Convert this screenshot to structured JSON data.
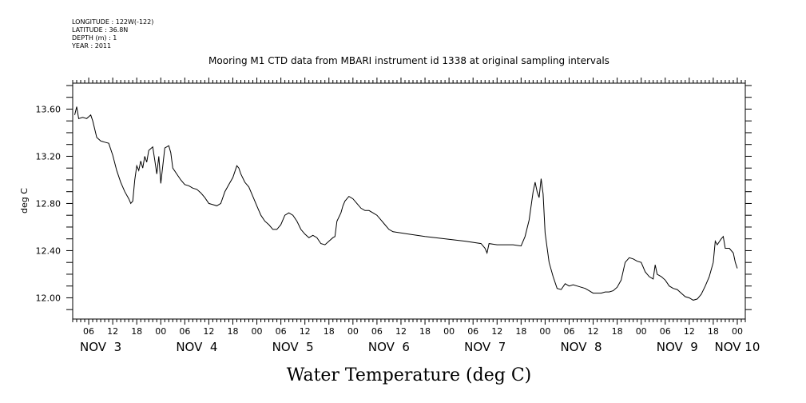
{
  "header": {
    "longitude": "LONGITUDE : 122W(-122)",
    "latitude": "LATITUDE : 36.8N",
    "depth": "DEPTH (m) : 1",
    "year": "YEAR : 2011"
  },
  "chart_data": {
    "type": "line",
    "title": "Mooring M1 CTD data from MBARI instrument id 1338 at original sampling intervals",
    "xlabel": "Water Temperature (deg C)",
    "ylabel": "deg C",
    "x_unit": "hours since NOV 3 00:00",
    "xlim": [
      2,
      170
    ],
    "ylim": [
      11.82,
      13.82
    ],
    "y_ticks": [
      12.0,
      12.4,
      12.8,
      13.2,
      13.6
    ],
    "y_tick_labels": [
      "12.00",
      "12.40",
      "12.80",
      "13.20",
      "13.60"
    ],
    "hour_labels": [
      {
        "x": 6,
        "label": "06"
      },
      {
        "x": 12,
        "label": "12"
      },
      {
        "x": 18,
        "label": "18"
      },
      {
        "x": 24,
        "label": "00"
      },
      {
        "x": 30,
        "label": "06"
      },
      {
        "x": 36,
        "label": "12"
      },
      {
        "x": 42,
        "label": "18"
      },
      {
        "x": 48,
        "label": "00"
      },
      {
        "x": 54,
        "label": "06"
      },
      {
        "x": 60,
        "label": "12"
      },
      {
        "x": 66,
        "label": "18"
      },
      {
        "x": 72,
        "label": "00"
      },
      {
        "x": 78,
        "label": "06"
      },
      {
        "x": 84,
        "label": "12"
      },
      {
        "x": 90,
        "label": "18"
      },
      {
        "x": 96,
        "label": "00"
      },
      {
        "x": 102,
        "label": "06"
      },
      {
        "x": 108,
        "label": "12"
      },
      {
        "x": 114,
        "label": "18"
      },
      {
        "x": 120,
        "label": "00"
      },
      {
        "x": 126,
        "label": "06"
      },
      {
        "x": 132,
        "label": "12"
      },
      {
        "x": 138,
        "label": "18"
      },
      {
        "x": 144,
        "label": "00"
      },
      {
        "x": 150,
        "label": "06"
      },
      {
        "x": 156,
        "label": "12"
      },
      {
        "x": 162,
        "label": "18"
      },
      {
        "x": 168,
        "label": "00"
      }
    ],
    "day_labels": [
      {
        "x": 9,
        "label": "NOV  3"
      },
      {
        "x": 33,
        "label": "NOV  4"
      },
      {
        "x": 57,
        "label": "NOV  5"
      },
      {
        "x": 81,
        "label": "NOV  6"
      },
      {
        "x": 105,
        "label": "NOV  7"
      },
      {
        "x": 129,
        "label": "NOV  8"
      },
      {
        "x": 153,
        "label": "NOV  9"
      },
      {
        "x": 168,
        "label": "NOV 10"
      }
    ],
    "series": [
      {
        "points": [
          [
            2.5,
            13.55
          ],
          [
            3.0,
            13.62
          ],
          [
            3.5,
            13.52
          ],
          [
            4.5,
            13.53
          ],
          [
            5.5,
            13.52
          ],
          [
            6.5,
            13.55
          ],
          [
            7.0,
            13.5
          ],
          [
            8.0,
            13.36
          ],
          [
            9.0,
            13.33
          ],
          [
            10.0,
            13.32
          ],
          [
            11.0,
            13.31
          ],
          [
            12.0,
            13.21
          ],
          [
            13.0,
            13.08
          ],
          [
            14.0,
            12.98
          ],
          [
            15.0,
            12.9
          ],
          [
            16.0,
            12.84
          ],
          [
            16.5,
            12.8
          ],
          [
            17.0,
            12.82
          ],
          [
            17.5,
            13.0
          ],
          [
            18.0,
            13.12
          ],
          [
            18.5,
            13.08
          ],
          [
            19.0,
            13.16
          ],
          [
            19.5,
            13.1
          ],
          [
            20.0,
            13.2
          ],
          [
            20.5,
            13.15
          ],
          [
            21.0,
            13.25
          ],
          [
            22.0,
            13.28
          ],
          [
            22.5,
            13.17
          ],
          [
            23.0,
            13.05
          ],
          [
            23.5,
            13.2
          ],
          [
            24.0,
            12.97
          ],
          [
            24.5,
            13.12
          ],
          [
            25.0,
            13.27
          ],
          [
            26.0,
            13.29
          ],
          [
            26.5,
            13.23
          ],
          [
            27.0,
            13.1
          ],
          [
            28.0,
            13.05
          ],
          [
            29.0,
            13.0
          ],
          [
            30.0,
            12.96
          ],
          [
            31.0,
            12.95
          ],
          [
            32.0,
            12.93
          ],
          [
            33.0,
            12.92
          ],
          [
            34.0,
            12.89
          ],
          [
            35.0,
            12.85
          ],
          [
            36.0,
            12.8
          ],
          [
            37.0,
            12.79
          ],
          [
            38.0,
            12.78
          ],
          [
            39.0,
            12.8
          ],
          [
            40.0,
            12.9
          ],
          [
            41.0,
            12.96
          ],
          [
            42.0,
            13.02
          ],
          [
            43.0,
            13.12
          ],
          [
            43.5,
            13.1
          ],
          [
            44.0,
            13.05
          ],
          [
            45.0,
            12.98
          ],
          [
            46.0,
            12.94
          ],
          [
            47.0,
            12.86
          ],
          [
            48.0,
            12.78
          ],
          [
            49.0,
            12.7
          ],
          [
            50.0,
            12.65
          ],
          [
            51.0,
            12.62
          ],
          [
            52.0,
            12.58
          ],
          [
            53.0,
            12.58
          ],
          [
            54.0,
            12.62
          ],
          [
            55.0,
            12.7
          ],
          [
            56.0,
            12.72
          ],
          [
            57.0,
            12.7
          ],
          [
            58.0,
            12.65
          ],
          [
            59.0,
            12.58
          ],
          [
            60.0,
            12.54
          ],
          [
            61.0,
            12.51
          ],
          [
            62.0,
            12.53
          ],
          [
            63.0,
            12.51
          ],
          [
            64.0,
            12.46
          ],
          [
            65.0,
            12.45
          ],
          [
            66.0,
            12.48
          ],
          [
            67.0,
            12.51
          ],
          [
            67.5,
            12.52
          ],
          [
            68.0,
            12.65
          ],
          [
            69.0,
            12.72
          ],
          [
            69.5,
            12.78
          ],
          [
            70.0,
            12.82
          ],
          [
            71.0,
            12.86
          ],
          [
            72.0,
            12.84
          ],
          [
            73.0,
            12.8
          ],
          [
            74.0,
            12.76
          ],
          [
            75.0,
            12.74
          ],
          [
            76.0,
            12.74
          ],
          [
            77.0,
            12.72
          ],
          [
            78.0,
            12.7
          ],
          [
            79.0,
            12.66
          ],
          [
            80.0,
            12.62
          ],
          [
            81.0,
            12.58
          ],
          [
            82.0,
            12.56
          ],
          [
            90.0,
            12.52
          ],
          [
            100.0,
            12.48
          ],
          [
            104.0,
            12.46
          ],
          [
            105.0,
            12.42
          ],
          [
            105.5,
            12.38
          ],
          [
            106.0,
            12.46
          ],
          [
            108.0,
            12.45
          ],
          [
            112.0,
            12.45
          ],
          [
            114.0,
            12.44
          ],
          [
            115.0,
            12.52
          ],
          [
            116.0,
            12.66
          ],
          [
            117.0,
            12.9
          ],
          [
            117.5,
            12.98
          ],
          [
            118.0,
            12.9
          ],
          [
            118.5,
            12.85
          ],
          [
            119.0,
            13.01
          ],
          [
            119.5,
            12.88
          ],
          [
            120.0,
            12.55
          ],
          [
            121.0,
            12.3
          ],
          [
            122.0,
            12.18
          ],
          [
            123.0,
            12.08
          ],
          [
            124.0,
            12.07
          ],
          [
            125.0,
            12.12
          ],
          [
            126.0,
            12.1
          ],
          [
            127.0,
            12.11
          ],
          [
            128.0,
            12.1
          ],
          [
            129.0,
            12.09
          ],
          [
            130.0,
            12.08
          ],
          [
            131.0,
            12.06
          ],
          [
            132.0,
            12.04
          ],
          [
            133.0,
            12.04
          ],
          [
            134.0,
            12.04
          ],
          [
            135.0,
            12.05
          ],
          [
            136.0,
            12.05
          ],
          [
            137.0,
            12.06
          ],
          [
            138.0,
            12.09
          ],
          [
            139.0,
            12.15
          ],
          [
            140.0,
            12.3
          ],
          [
            141.0,
            12.34
          ],
          [
            142.0,
            12.33
          ],
          [
            143.0,
            12.31
          ],
          [
            144.0,
            12.3
          ],
          [
            145.0,
            12.22
          ],
          [
            146.0,
            12.18
          ],
          [
            147.0,
            12.16
          ],
          [
            147.5,
            12.28
          ],
          [
            148.0,
            12.2
          ],
          [
            149.0,
            12.18
          ],
          [
            150.0,
            12.15
          ],
          [
            151.0,
            12.1
          ],
          [
            152.0,
            12.08
          ],
          [
            153.0,
            12.07
          ],
          [
            154.0,
            12.04
          ],
          [
            155.0,
            12.01
          ],
          [
            156.0,
            12.0
          ],
          [
            157.0,
            11.98
          ],
          [
            158.0,
            11.99
          ],
          [
            159.0,
            12.03
          ],
          [
            160.0,
            12.1
          ],
          [
            161.0,
            12.18
          ],
          [
            162.0,
            12.3
          ],
          [
            162.5,
            12.48
          ],
          [
            163.0,
            12.45
          ],
          [
            164.0,
            12.5
          ],
          [
            164.5,
            12.52
          ],
          [
            165.0,
            12.42
          ],
          [
            166.0,
            12.42
          ],
          [
            167.0,
            12.38
          ],
          [
            167.5,
            12.3
          ],
          [
            168.0,
            12.25
          ]
        ]
      }
    ]
  }
}
